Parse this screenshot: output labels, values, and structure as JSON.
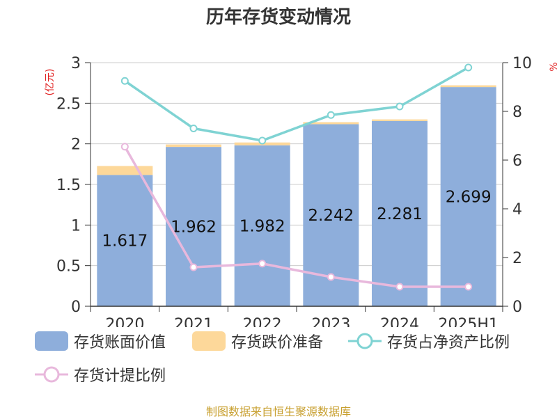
{
  "title": "历年存货变动情况",
  "footer": "制图数据来自恒生聚源数据库",
  "colors": {
    "book": "#8eaedb",
    "reserve": "#fdd89a",
    "ratio": "#7fd3d3",
    "provision": "#e8b8dc",
    "axis_unit": "#e02020"
  },
  "legend": [
    {
      "label": "存货账面价值",
      "kind": "bar",
      "color": "#8eaedb"
    },
    {
      "label": "存货跌价准备",
      "kind": "bar",
      "color": "#fdd89a"
    },
    {
      "label": "存货占净资产比例",
      "kind": "line",
      "color": "#7fd3d3"
    },
    {
      "label": "存货计提比例",
      "kind": "line",
      "color": "#e8b8dc"
    }
  ],
  "chart_data": {
    "type": "bar",
    "categories": [
      "2020",
      "2021",
      "2022",
      "2023",
      "2024",
      "2025H1"
    ],
    "y_left": {
      "label": "(亿元)",
      "lim": [
        0,
        3
      ],
      "ticks": [
        "0",
        "0.5",
        "1",
        "1.5",
        "2",
        "2.5",
        "3"
      ]
    },
    "y_right": {
      "label": "%",
      "lim": [
        0,
        10
      ],
      "ticks": [
        "0",
        "2",
        "4",
        "6",
        "8",
        "10"
      ]
    },
    "grid": true,
    "series": [
      {
        "name": "存货账面价值",
        "type": "bar",
        "axis": "left",
        "stack": "inv",
        "values": [
          1.617,
          1.962,
          1.982,
          2.242,
          2.281,
          2.699
        ],
        "labels": [
          "1.617",
          "1.962",
          "1.982",
          "2.242",
          "2.281",
          "2.699"
        ]
      },
      {
        "name": "存货跌价准备",
        "type": "bar",
        "axis": "left",
        "stack": "inv",
        "values": [
          0.11,
          0.03,
          0.035,
          0.025,
          0.02,
          0.022
        ]
      },
      {
        "name": "存货占净资产比例",
        "type": "line",
        "axis": "right",
        "values": [
          9.25,
          7.3,
          6.8,
          7.85,
          8.2,
          9.8
        ]
      },
      {
        "name": "存货计提比例",
        "type": "line",
        "axis": "right",
        "values": [
          6.55,
          1.6,
          1.75,
          1.2,
          0.8,
          0.8
        ]
      }
    ]
  }
}
